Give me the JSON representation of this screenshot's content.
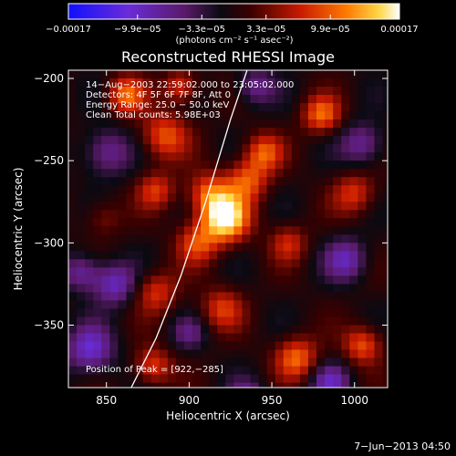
{
  "chart_data": {
    "type": "heatmap",
    "title": "Reconstructed RHESSI Image",
    "xlabel": "Heliocentric X (arcsec)",
    "ylabel": "Heliocentric Y (arcsec)",
    "xlim": [
      827,
      1020
    ],
    "ylim": [
      -388,
      -195
    ],
    "x_ticks": [
      {
        "value": 850,
        "label": "850"
      },
      {
        "value": 900,
        "label": "900"
      },
      {
        "value": 950,
        "label": "950"
      },
      {
        "value": 1000,
        "label": "1000"
      }
    ],
    "y_ticks": [
      {
        "value": -200,
        "label": "−200"
      },
      {
        "value": -250,
        "label": "−250"
      },
      {
        "value": -300,
        "label": "−300"
      },
      {
        "value": -350,
        "label": "−350"
      }
    ],
    "colorbar": {
      "min": -0.00017,
      "max": 0.00017,
      "tick_labels": [
        {
          "value": -0.00017,
          "label": "−0.00017"
        },
        {
          "value": -9.9e-05,
          "label": "−9.9e−05"
        },
        {
          "value": -3.3e-05,
          "label": "−3.3e−05"
        },
        {
          "value": 3.3e-05,
          "label": "3.3e−05"
        },
        {
          "value": 9.9e-05,
          "label": "9.9e−05"
        },
        {
          "value": 0.00017,
          "label": "0.00017"
        }
      ],
      "units": "(photons cm⁻² s⁻¹ asec⁻²)"
    },
    "annotations": [
      "14−Aug−2003 22:59:02.000 to 23:05:02.000",
      "Detectors: 4F 5F 6F 7F 8F, Att 0",
      "Energy Range: 25.0 − 50.0 keV",
      "Clean    Total counts: 5.98E+03"
    ],
    "peak_label": "Position of Peak = [922,−285]",
    "peak": {
      "x": 922,
      "y": -285
    },
    "limb_line": [
      {
        "x": 865,
        "y": -388
      },
      {
        "x": 880,
        "y": -358
      },
      {
        "x": 895,
        "y": -320
      },
      {
        "x": 910,
        "y": -275
      },
      {
        "x": 925,
        "y": -225
      },
      {
        "x": 935,
        "y": -195
      }
    ],
    "features": [
      {
        "x": 922,
        "y": -285,
        "amplitude": 1.0,
        "sigma": 10
      },
      {
        "x": 912,
        "y": -270,
        "amplitude": 0.55,
        "sigma": 9
      },
      {
        "x": 935,
        "y": -262,
        "amplitude": 0.55,
        "sigma": 9
      },
      {
        "x": 905,
        "y": -300,
        "amplitude": 0.5,
        "sigma": 9
      },
      {
        "x": 945,
        "y": -245,
        "amplitude": 0.55,
        "sigma": 8
      },
      {
        "x": 885,
        "y": -235,
        "amplitude": 0.55,
        "sigma": 10
      },
      {
        "x": 880,
        "y": -268,
        "amplitude": 0.45,
        "sigma": 8
      },
      {
        "x": 862,
        "y": -210,
        "amplitude": 0.6,
        "sigma": 8
      },
      {
        "x": 895,
        "y": -205,
        "amplitude": 0.5,
        "sigma": 7
      },
      {
        "x": 980,
        "y": -222,
        "amplitude": 0.6,
        "sigma": 8
      },
      {
        "x": 1000,
        "y": -270,
        "amplitude": 0.45,
        "sigma": 9
      },
      {
        "x": 960,
        "y": -300,
        "amplitude": 0.4,
        "sigma": 8
      },
      {
        "x": 920,
        "y": -340,
        "amplitude": 0.45,
        "sigma": 9
      },
      {
        "x": 880,
        "y": -330,
        "amplitude": 0.45,
        "sigma": 9
      },
      {
        "x": 965,
        "y": -370,
        "amplitude": 0.6,
        "sigma": 9
      },
      {
        "x": 1005,
        "y": -362,
        "amplitude": 0.55,
        "sigma": 8
      },
      {
        "x": 878,
        "y": -375,
        "amplitude": 0.5,
        "sigma": 8
      },
      {
        "x": 848,
        "y": -285,
        "amplitude": 0.25,
        "sigma": 8
      },
      {
        "x": 835,
        "y": -318,
        "amplitude": -0.45,
        "sigma": 8
      },
      {
        "x": 855,
        "y": -325,
        "amplitude": -0.55,
        "sigma": 9
      },
      {
        "x": 840,
        "y": -365,
        "amplitude": -0.6,
        "sigma": 10
      },
      {
        "x": 850,
        "y": -245,
        "amplitude": -0.45,
        "sigma": 10
      },
      {
        "x": 995,
        "y": -310,
        "amplitude": -0.5,
        "sigma": 9
      },
      {
        "x": 1005,
        "y": -240,
        "amplitude": -0.45,
        "sigma": 9
      },
      {
        "x": 940,
        "y": -205,
        "amplitude": -0.4,
        "sigma": 8
      },
      {
        "x": 985,
        "y": -385,
        "amplitude": -0.5,
        "sigma": 8
      },
      {
        "x": 935,
        "y": -395,
        "amplitude": -0.4,
        "sigma": 8
      },
      {
        "x": 900,
        "y": -355,
        "amplitude": -0.3,
        "sigma": 7
      }
    ]
  },
  "footer": {
    "date_label": "7−Jun−2013 04:50"
  }
}
